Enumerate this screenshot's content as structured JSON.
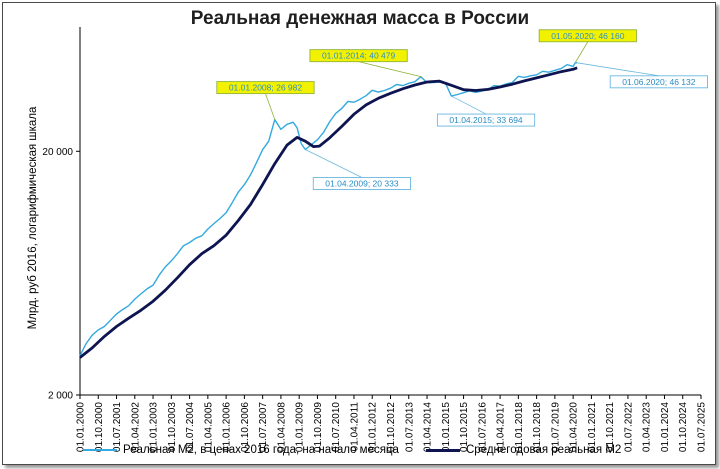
{
  "chart_data": {
    "type": "line",
    "title": "Реальная денежная масса в России",
    "xlabel": "",
    "ylabel": "Млрд. руб 2016, логарифмическая шкала",
    "yscale": "log",
    "ylim": [
      2000,
      60000
    ],
    "yticks": [
      "2 000",
      "20 000"
    ],
    "ytick_values": [
      2000,
      20000
    ],
    "xlim": [
      "2000-01",
      "2025-07"
    ],
    "xticks": [
      "01.01.2000",
      "01.10.2000",
      "01.07.2001",
      "01.04.2002",
      "01.01.2003",
      "01.10.2003",
      "01.07.2004",
      "01.04.2005",
      "01.01.2006",
      "01.10.2006",
      "01.07.2007",
      "01.04.2008",
      "01.01.2009",
      "01.10.2009",
      "01.07.2010",
      "01.04.2011",
      "01.01.2012",
      "01.10.2012",
      "01.07.2013",
      "01.04.2014",
      "01.01.2015",
      "01.10.2015",
      "01.07.2016",
      "01.04.2017",
      "01.01.2018",
      "01.10.2018",
      "01.07.2019",
      "01.04.2020",
      "01.01.2021",
      "01.10.2021",
      "01.07.2022",
      "01.04.2023",
      "01.01.2024",
      "01.10.2024",
      "01.07.2025"
    ],
    "grid": false,
    "legend_position": "bottom",
    "series": [
      {
        "name": "Реальная М2, в ценах 2016 года, на начало месяца",
        "color": "#33a9df",
        "points": [
          [
            "2000-01",
            2900
          ],
          [
            "2000-04",
            3250
          ],
          [
            "2000-07",
            3520
          ],
          [
            "2000-10",
            3700
          ],
          [
            "2001-01",
            3820
          ],
          [
            "2001-04",
            4050
          ],
          [
            "2001-07",
            4300
          ],
          [
            "2001-10",
            4480
          ],
          [
            "2002-01",
            4650
          ],
          [
            "2002-04",
            4950
          ],
          [
            "2002-07",
            5200
          ],
          [
            "2002-10",
            5450
          ],
          [
            "2003-01",
            5650
          ],
          [
            "2003-04",
            6200
          ],
          [
            "2003-07",
            6700
          ],
          [
            "2003-10",
            7100
          ],
          [
            "2004-01",
            7600
          ],
          [
            "2004-04",
            8200
          ],
          [
            "2004-07",
            8450
          ],
          [
            "2004-10",
            8800
          ],
          [
            "2005-01",
            9000
          ],
          [
            "2005-04",
            9600
          ],
          [
            "2005-07",
            10100
          ],
          [
            "2005-10",
            10600
          ],
          [
            "2006-01",
            11200
          ],
          [
            "2006-04",
            12300
          ],
          [
            "2006-07",
            13600
          ],
          [
            "2006-10",
            14600
          ],
          [
            "2007-01",
            16000
          ],
          [
            "2007-04",
            18000
          ],
          [
            "2007-07",
            20300
          ],
          [
            "2007-10",
            22000
          ],
          [
            "2008-01",
            26982
          ],
          [
            "2008-04",
            24600
          ],
          [
            "2008-07",
            25800
          ],
          [
            "2008-10",
            26300
          ],
          [
            "2008-12",
            25000
          ],
          [
            "2009-02",
            21500
          ],
          [
            "2009-04",
            20333
          ],
          [
            "2009-07",
            21300
          ],
          [
            "2009-10",
            22300
          ],
          [
            "2010-01",
            23900
          ],
          [
            "2010-04",
            26400
          ],
          [
            "2010-07",
            28600
          ],
          [
            "2010-10",
            30000
          ],
          [
            "2011-01",
            32000
          ],
          [
            "2011-04",
            31800
          ],
          [
            "2011-07",
            32700
          ],
          [
            "2011-10",
            33800
          ],
          [
            "2012-01",
            35600
          ],
          [
            "2012-04",
            35000
          ],
          [
            "2012-07",
            35500
          ],
          [
            "2012-10",
            36300
          ],
          [
            "2013-01",
            37600
          ],
          [
            "2013-04",
            37200
          ],
          [
            "2013-07",
            38000
          ],
          [
            "2013-10",
            38600
          ],
          [
            "2014-01",
            40479
          ],
          [
            "2014-04",
            38200
          ],
          [
            "2014-07",
            38300
          ],
          [
            "2014-10",
            38500
          ],
          [
            "2015-01",
            38200
          ],
          [
            "2015-04",
            33694
          ],
          [
            "2015-07",
            34200
          ],
          [
            "2015-10",
            34800
          ],
          [
            "2016-01",
            35400
          ],
          [
            "2016-04",
            34900
          ],
          [
            "2016-07",
            35300
          ],
          [
            "2016-10",
            35800
          ],
          [
            "2017-01",
            37200
          ],
          [
            "2017-04",
            37000
          ],
          [
            "2017-07",
            37800
          ],
          [
            "2017-10",
            38300
          ],
          [
            "2018-01",
            40600
          ],
          [
            "2018-04",
            40200
          ],
          [
            "2018-07",
            40800
          ],
          [
            "2018-10",
            41200
          ],
          [
            "2019-01",
            42600
          ],
          [
            "2019-04",
            42200
          ],
          [
            "2019-07",
            43000
          ],
          [
            "2019-10",
            43700
          ],
          [
            "2020-01",
            45300
          ],
          [
            "2020-04",
            44600
          ],
          [
            "2020-05",
            46160
          ],
          [
            "2020-06",
            46132
          ]
        ]
      },
      {
        "name": "Среднегодовая реальная М2",
        "color": "#0d1450",
        "points": [
          [
            "2000-01",
            2850
          ],
          [
            "2000-07",
            3120
          ],
          [
            "2001-01",
            3480
          ],
          [
            "2001-07",
            3820
          ],
          [
            "2002-01",
            4130
          ],
          [
            "2002-07",
            4450
          ],
          [
            "2003-01",
            4850
          ],
          [
            "2003-07",
            5380
          ],
          [
            "2004-01",
            6050
          ],
          [
            "2004-07",
            6850
          ],
          [
            "2005-01",
            7600
          ],
          [
            "2005-07",
            8200
          ],
          [
            "2006-01",
            9050
          ],
          [
            "2006-07",
            10400
          ],
          [
            "2007-01",
            12100
          ],
          [
            "2007-07",
            14600
          ],
          [
            "2008-01",
            17800
          ],
          [
            "2008-07",
            21200
          ],
          [
            "2008-12",
            22800
          ],
          [
            "2009-04",
            22000
          ],
          [
            "2009-08",
            20900
          ],
          [
            "2009-11",
            21000
          ],
          [
            "2010-04",
            22700
          ],
          [
            "2010-10",
            25300
          ],
          [
            "2011-04",
            28400
          ],
          [
            "2011-10",
            31000
          ],
          [
            "2012-04",
            33000
          ],
          [
            "2012-10",
            34600
          ],
          [
            "2013-04",
            36100
          ],
          [
            "2013-10",
            37400
          ],
          [
            "2014-04",
            38500
          ],
          [
            "2014-10",
            38800
          ],
          [
            "2015-04",
            37300
          ],
          [
            "2015-10",
            35800
          ],
          [
            "2016-04",
            35500
          ],
          [
            "2016-10",
            35900
          ],
          [
            "2017-04",
            36700
          ],
          [
            "2017-10",
            37700
          ],
          [
            "2018-04",
            38900
          ],
          [
            "2018-10",
            40000
          ],
          [
            "2019-04",
            41200
          ],
          [
            "2019-10",
            42400
          ],
          [
            "2020-04",
            43400
          ],
          [
            "2020-06",
            44000
          ]
        ]
      }
    ],
    "annotations": [
      {
        "date": "2008-01",
        "value": 26982,
        "text": "01.01.2008;  26 982",
        "style": "max"
      },
      {
        "date": "2009-04",
        "value": 20333,
        "text": "01.04.2009;  20 333",
        "style": "min"
      },
      {
        "date": "2014-01",
        "value": 40479,
        "text": "01.01.2014;  40 479",
        "style": "max"
      },
      {
        "date": "2015-04",
        "value": 33694,
        "text": "01.04.2015;  33 694",
        "style": "min"
      },
      {
        "date": "2020-05",
        "value": 46160,
        "text": "01.05.2020;  46 160",
        "style": "max"
      },
      {
        "date": "2020-06",
        "value": 46132,
        "text": "01.06.2020;  46 132",
        "style": "min"
      }
    ],
    "annotation_colors": {
      "max_fill": "#f2f200",
      "max_border": "#8fb43a",
      "max_text": "#2f8fc8",
      "min_fill": "#ffffff",
      "min_border": "#6ab8e0",
      "min_text": "#2a8cc4"
    }
  }
}
